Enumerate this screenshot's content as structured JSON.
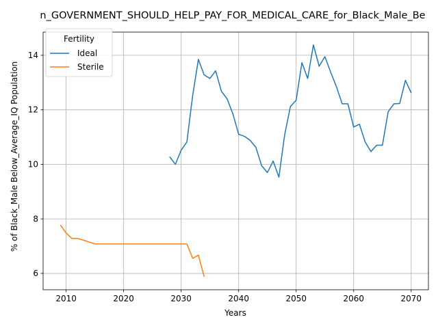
{
  "chart_data": {
    "type": "line",
    "title": "n_GOVERNMENT_SHOULD_HELP_PAY_FOR_MEDICAL_CARE_for_Black_Male_Be",
    "xlabel": "Years",
    "ylabel": "% of Black_Male Below_Average_IQ Population",
    "xlim": [
      2006,
      2073
    ],
    "ylim": [
      5.4,
      14.85
    ],
    "xticks": [
      2010,
      2020,
      2030,
      2040,
      2050,
      2060,
      2070
    ],
    "yticks": [
      6,
      8,
      10,
      12,
      14
    ],
    "grid": true,
    "legend": {
      "title": "Fertility",
      "placement": "top-left"
    },
    "series": [
      {
        "name": "Ideal",
        "color": "#1f77b4",
        "x": [
          2028,
          2029,
          2030,
          2031,
          2032,
          2033,
          2034,
          2035,
          2036,
          2037,
          2038,
          2039,
          2040,
          2041,
          2042,
          2043,
          2044,
          2045,
          2046,
          2047,
          2048,
          2049,
          2050,
          2051,
          2052,
          2053,
          2054,
          2055,
          2056,
          2057,
          2058,
          2059,
          2060,
          2061,
          2062,
          2063,
          2064,
          2065,
          2066,
          2067,
          2068,
          2069,
          2070
        ],
        "values": [
          10.28,
          10.0,
          10.52,
          10.82,
          12.52,
          13.85,
          13.28,
          13.15,
          13.43,
          12.68,
          12.4,
          11.85,
          11.1,
          11.03,
          10.88,
          10.62,
          9.95,
          9.7,
          10.12,
          9.53,
          11.08,
          12.12,
          12.35,
          13.73,
          13.15,
          14.38,
          13.6,
          13.95,
          13.38,
          12.85,
          12.22,
          12.22,
          11.37,
          11.47,
          10.82,
          10.47,
          10.7,
          10.7,
          11.93,
          12.22,
          12.23,
          13.08,
          12.62
        ]
      },
      {
        "name": "Sterile",
        "color": "#ff7f0e",
        "x": [
          2009,
          2010,
          2011,
          2012,
          2013,
          2014,
          2015,
          2016,
          2017,
          2018,
          2019,
          2020,
          2021,
          2022,
          2023,
          2024,
          2025,
          2026,
          2027,
          2028,
          2029,
          2030,
          2031,
          2032,
          2033,
          2034
        ],
        "values": [
          7.78,
          7.48,
          7.28,
          7.28,
          7.22,
          7.15,
          7.08,
          7.08,
          7.08,
          7.08,
          7.08,
          7.08,
          7.08,
          7.08,
          7.08,
          7.08,
          7.08,
          7.08,
          7.08,
          7.08,
          7.08,
          7.08,
          7.08,
          6.55,
          6.67,
          5.88
        ]
      }
    ]
  }
}
